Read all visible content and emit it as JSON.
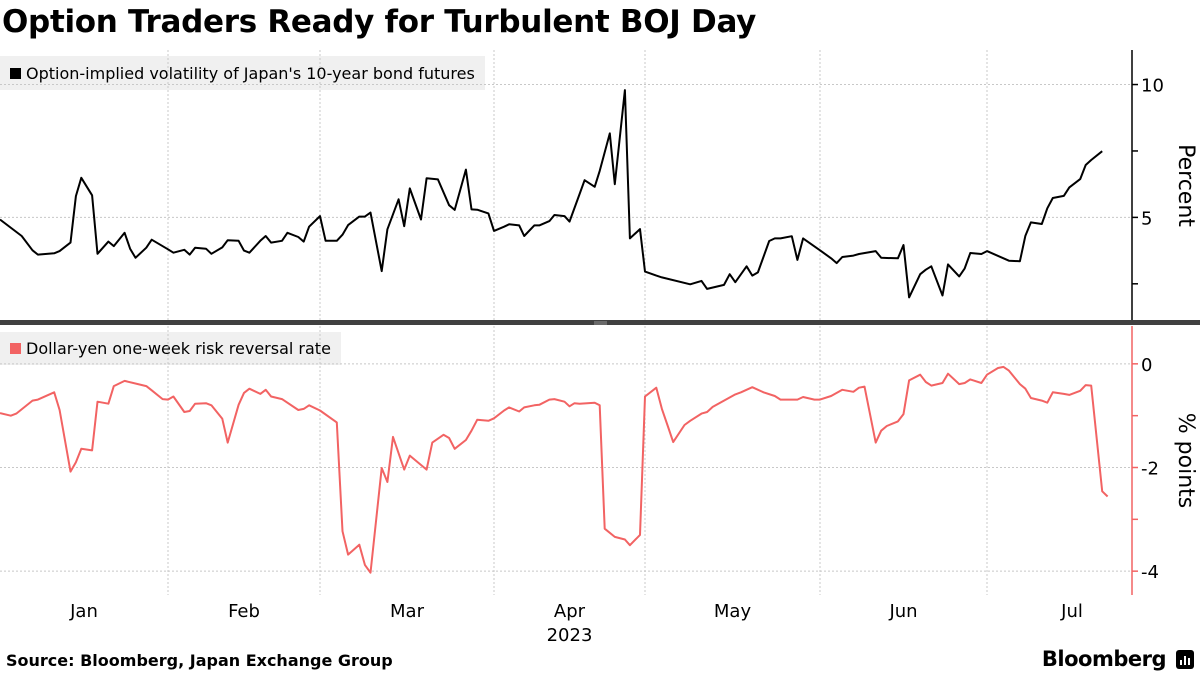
{
  "title": "Option Traders Ready for Turbulent BOJ Day",
  "source": "Source: Bloomberg, Japan Exchange Group",
  "brand": "Bloomberg",
  "colors": {
    "series1": "#000000",
    "series2": "#f26363",
    "legend_bg": "#f0f0f0",
    "divider": "#404040"
  },
  "chart_data": [
    {
      "type": "line",
      "legend": "Option-implied volatility of Japan's 10-year bond futures",
      "ylabel": "Percent",
      "ylim": [
        1.1,
        11.3
      ],
      "yticks": [
        2.5,
        5,
        7.5,
        10
      ],
      "ytick_labels": {
        "5": "5",
        "10": "10"
      },
      "ygrid": [
        5,
        10
      ],
      "axis_side": "right",
      "series": [
        {
          "color": "#000000",
          "x": [
            "2023-01-01",
            "2023-01-05",
            "2023-01-07",
            "2023-01-08",
            "2023-01-11",
            "2023-01-12",
            "2023-01-14",
            "2023-01-15",
            "2023-01-16",
            "2023-01-18",
            "2023-01-19",
            "2023-01-21",
            "2023-01-22",
            "2023-01-24",
            "2023-01-25",
            "2023-01-26",
            "2023-01-28",
            "2023-01-29",
            "2023-02-01",
            "2023-02-02",
            "2023-02-04",
            "2023-02-05",
            "2023-02-06",
            "2023-02-08",
            "2023-02-09",
            "2023-02-11",
            "2023-02-12",
            "2023-02-14",
            "2023-02-15",
            "2023-02-16",
            "2023-02-18",
            "2023-02-19",
            "2023-02-20",
            "2023-02-22",
            "2023-02-23",
            "2023-02-25",
            "2023-02-26",
            "2023-02-27",
            "2023-03-01",
            "2023-03-02",
            "2023-03-04",
            "2023-03-05",
            "2023-03-06",
            "2023-03-08",
            "2023-03-09",
            "2023-03-10",
            "2023-03-12",
            "2023-03-13",
            "2023-03-15",
            "2023-03-16",
            "2023-03-17",
            "2023-03-19",
            "2023-03-20",
            "2023-03-22",
            "2023-03-24",
            "2023-03-25",
            "2023-03-27",
            "2023-03-28",
            "2023-03-29",
            "2023-03-31",
            "2023-04-01",
            "2023-04-03",
            "2023-04-04",
            "2023-04-06",
            "2023-04-07",
            "2023-04-09",
            "2023-04-10",
            "2023-04-12",
            "2023-04-13",
            "2023-04-15",
            "2023-04-16",
            "2023-04-18",
            "2023-04-19",
            "2023-04-21",
            "2023-04-22",
            "2023-04-24",
            "2023-04-25",
            "2023-04-27",
            "2023-04-28",
            "2023-04-30",
            "2023-05-01",
            "2023-05-03",
            "2023-05-04",
            "2023-05-09",
            "2023-05-11",
            "2023-05-12",
            "2023-05-15",
            "2023-05-16",
            "2023-05-17",
            "2023-05-19",
            "2023-05-20",
            "2023-05-21",
            "2023-05-23",
            "2023-05-24",
            "2023-05-25",
            "2023-05-27",
            "2023-05-28",
            "2023-05-29",
            "2023-06-01",
            "2023-06-03",
            "2023-06-04",
            "2023-06-05",
            "2023-06-07",
            "2023-06-08",
            "2023-06-11",
            "2023-06-12",
            "2023-06-15",
            "2023-06-16",
            "2023-06-17",
            "2023-06-19",
            "2023-06-20",
            "2023-06-21",
            "2023-06-23",
            "2023-06-24",
            "2023-06-26",
            "2023-06-27",
            "2023-06-28",
            "2023-06-30",
            "2023-07-01",
            "2023-07-04",
            "2023-07-05",
            "2023-07-07",
            "2023-07-08",
            "2023-07-09",
            "2023-07-11",
            "2023-07-12",
            "2023-07-13",
            "2023-07-15",
            "2023-07-16",
            "2023-07-18",
            "2023-07-19",
            "2023-07-20",
            "2023-07-22"
          ],
          "y": [
            4.92,
            4.3,
            3.76,
            3.6,
            3.65,
            3.73,
            4.05,
            5.8,
            6.49,
            5.83,
            3.63,
            4.09,
            3.92,
            4.42,
            3.82,
            3.48,
            3.86,
            4.16,
            3.8,
            3.67,
            3.78,
            3.6,
            3.86,
            3.82,
            3.63,
            3.87,
            4.14,
            4.12,
            3.75,
            3.67,
            4.12,
            4.3,
            4.05,
            4.12,
            4.42,
            4.26,
            4.09,
            4.65,
            5.05,
            4.12,
            4.12,
            4.35,
            4.71,
            5.03,
            5.03,
            5.18,
            2.98,
            4.55,
            5.68,
            4.67,
            6.09,
            4.92,
            6.47,
            6.43,
            5.46,
            5.28,
            6.8,
            5.3,
            5.29,
            5.15,
            4.49,
            4.65,
            4.74,
            4.7,
            4.3,
            4.7,
            4.7,
            4.86,
            5.09,
            5.05,
            4.84,
            5.88,
            6.4,
            6.15,
            6.75,
            8.16,
            6.25,
            9.79,
            4.21,
            4.56,
            2.96,
            2.81,
            2.74,
            2.48,
            2.61,
            2.31,
            2.46,
            2.86,
            2.56,
            3.16,
            2.81,
            2.93,
            4.11,
            4.21,
            4.21,
            4.29,
            3.4,
            4.21,
            3.76,
            3.46,
            3.28,
            3.51,
            3.56,
            3.62,
            3.73,
            3.48,
            3.46,
            3.96,
            1.99,
            2.86,
            3.03,
            3.16,
            2.06,
            3.23,
            2.78,
            3.08,
            3.66,
            3.62,
            3.73,
            3.46,
            3.37,
            3.35,
            4.31,
            4.81,
            4.75,
            5.34,
            5.73,
            5.81,
            6.13,
            6.44,
            6.97,
            7.16,
            7.49
          ]
        }
      ]
    },
    {
      "type": "line",
      "legend": "Dollar-yen one-week risk reversal rate",
      "ylabel": "% points",
      "ylim": [
        -4.46,
        0.73
      ],
      "yticks": [
        0,
        -1,
        -2,
        -3,
        -4
      ],
      "ytick_labels": {
        "0": "0",
        "-2": "-2",
        "-4": "-4"
      },
      "ygrid": [
        0,
        -2,
        -4
      ],
      "axis_side": "right",
      "series": [
        {
          "color": "#f26363",
          "x": [
            "2023-01-01",
            "2023-01-03",
            "2023-01-04",
            "2023-01-07",
            "2023-01-08",
            "2023-01-11",
            "2023-01-12",
            "2023-01-14",
            "2023-01-15",
            "2023-01-16",
            "2023-01-18",
            "2023-01-19",
            "2023-01-21",
            "2023-01-22",
            "2023-01-24",
            "2023-01-28",
            "2023-01-29",
            "2023-01-31",
            "2023-02-01",
            "2023-02-02",
            "2023-02-04",
            "2023-02-05",
            "2023-02-06",
            "2023-02-08",
            "2023-02-09",
            "2023-02-11",
            "2023-02-12",
            "2023-02-14",
            "2023-02-15",
            "2023-02-16",
            "2023-02-18",
            "2023-02-19",
            "2023-02-20",
            "2023-02-22",
            "2023-02-25",
            "2023-02-26",
            "2023-02-27",
            "2023-03-01",
            "2023-03-04",
            "2023-03-05",
            "2023-03-06",
            "2023-03-08",
            "2023-03-09",
            "2023-03-10",
            "2023-03-12",
            "2023-03-13",
            "2023-03-14",
            "2023-03-16",
            "2023-03-17",
            "2023-03-20",
            "2023-03-21",
            "2023-03-23",
            "2023-03-24",
            "2023-03-25",
            "2023-03-27",
            "2023-03-28",
            "2023-03-29",
            "2023-03-31",
            "2023-04-01",
            "2023-04-03",
            "2023-04-04",
            "2023-04-06",
            "2023-04-07",
            "2023-04-09",
            "2023-04-10",
            "2023-04-12",
            "2023-04-13",
            "2023-04-15",
            "2023-04-16",
            "2023-04-17",
            "2023-04-18",
            "2023-04-21",
            "2023-04-22",
            "2023-04-23",
            "2023-04-25",
            "2023-04-27",
            "2023-04-28",
            "2023-04-30",
            "2023-05-01",
            "2023-05-03",
            "2023-05-04",
            "2023-05-05",
            "2023-05-06",
            "2023-05-08",
            "2023-05-09",
            "2023-05-11",
            "2023-05-12",
            "2023-05-13",
            "2023-05-15",
            "2023-05-17",
            "2023-05-18",
            "2023-05-20",
            "2023-05-22",
            "2023-05-24",
            "2023-05-25",
            "2023-05-28",
            "2023-05-29",
            "2023-05-31",
            "2023-06-01",
            "2023-06-03",
            "2023-06-05",
            "2023-06-07",
            "2023-06-08",
            "2023-06-09",
            "2023-06-11",
            "2023-06-12",
            "2023-06-13",
            "2023-06-15",
            "2023-06-16",
            "2023-06-17",
            "2023-06-19",
            "2023-06-20",
            "2023-06-21",
            "2023-06-23",
            "2023-06-24",
            "2023-06-26",
            "2023-06-27",
            "2023-06-28",
            "2023-06-30",
            "2023-07-01",
            "2023-07-03",
            "2023-07-04",
            "2023-07-05",
            "2023-07-07",
            "2023-07-08",
            "2023-07-09",
            "2023-07-11",
            "2023-07-12",
            "2023-07-13",
            "2023-07-15",
            "2023-07-16",
            "2023-07-18",
            "2023-07-19",
            "2023-07-20",
            "2023-07-22",
            "2023-07-23"
          ],
          "y": [
            -0.95,
            -1.0,
            -0.96,
            -0.71,
            -0.69,
            -0.55,
            -0.89,
            -2.08,
            -1.9,
            -1.64,
            -1.67,
            -0.73,
            -0.77,
            -0.43,
            -0.33,
            -0.43,
            -0.51,
            -0.68,
            -0.69,
            -0.63,
            -0.93,
            -0.91,
            -0.77,
            -0.76,
            -0.8,
            -1.06,
            -1.52,
            -0.79,
            -0.56,
            -0.48,
            -0.58,
            -0.5,
            -0.63,
            -0.68,
            -0.89,
            -0.87,
            -0.8,
            -0.9,
            -1.13,
            -3.23,
            -3.68,
            -3.49,
            -3.88,
            -4.03,
            -2.01,
            -2.28,
            -1.41,
            -2.04,
            -1.77,
            -2.04,
            -1.52,
            -1.37,
            -1.43,
            -1.64,
            -1.47,
            -1.29,
            -1.08,
            -1.1,
            -1.05,
            -0.9,
            -0.84,
            -0.92,
            -0.84,
            -0.8,
            -0.79,
            -0.69,
            -0.68,
            -0.73,
            -0.82,
            -0.76,
            -0.77,
            -0.75,
            -0.8,
            -3.18,
            -3.34,
            -3.39,
            -3.5,
            -3.3,
            -0.63,
            -0.46,
            -0.87,
            -1.19,
            -1.51,
            -1.18,
            -1.1,
            -0.96,
            -0.93,
            -0.83,
            -0.71,
            -0.59,
            -0.55,
            -0.45,
            -0.55,
            -0.62,
            -0.69,
            -0.69,
            -0.64,
            -0.69,
            -0.69,
            -0.62,
            -0.5,
            -0.54,
            -0.46,
            -0.44,
            -1.52,
            -1.29,
            -1.2,
            -1.11,
            -0.97,
            -0.32,
            -0.21,
            -0.35,
            -0.42,
            -0.37,
            -0.19,
            -0.39,
            -0.37,
            -0.3,
            -0.37,
            -0.21,
            -0.08,
            -0.06,
            -0.13,
            -0.39,
            -0.48,
            -0.66,
            -0.71,
            -0.75,
            -0.55,
            -0.58,
            -0.6,
            -0.52,
            -0.41,
            -0.42,
            -2.46,
            -2.56
          ]
        }
      ]
    }
  ],
  "xaxis": {
    "month_labels": [
      "Jan",
      "Feb",
      "Mar",
      "Apr",
      "May",
      "Jun",
      "Jul"
    ],
    "year_label": "2023",
    "xgrid": [
      "2023-02-01",
      "2023-03-01",
      "2023-04-01",
      "2023-05-01",
      "2023-06-01",
      "2023-07-01"
    ]
  }
}
